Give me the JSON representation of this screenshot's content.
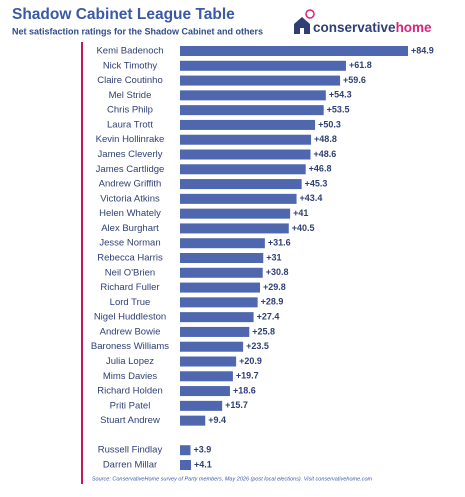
{
  "chart_data": {
    "type": "bar",
    "orientation": "horizontal",
    "title": "Shadow Cabinet League Table",
    "subtitle": "Net satisfaction ratings for the Shadow Cabinet and others",
    "logo": {
      "part1": "conservative",
      "part2": "home"
    },
    "source": "Source: ConservativeHome survey of Party members, May 2026 (post local elections). Visit conservativehome.com",
    "color": "#4e67ae",
    "categories": [
      "Kemi Badenoch",
      "Nick Timothy",
      "Claire Coutinho",
      "Mel Stride",
      "Chris Philp",
      "Laura Trott",
      "Kevin Hollinrake",
      "James Cleverly",
      "James Cartlidge",
      "Andrew Griffith",
      "Victoria Atkins",
      "Helen Whately",
      "Alex Burghart",
      "Jesse Norman",
      "Rebecca Harris",
      "Neil O'Brien",
      "Richard Fuller",
      "Lord True",
      "Nigel Huddleston",
      "Andrew Bowie",
      "Baroness Williams",
      "Julia Lopez",
      "Mims Davies",
      "Richard Holden",
      "Priti Patel",
      "Stuart Andrew",
      null,
      "Russell Findlay",
      "Darren Millar"
    ],
    "values": [
      84.9,
      61.8,
      59.6,
      54.3,
      53.5,
      50.3,
      48.8,
      48.6,
      46.8,
      45.3,
      43.4,
      41,
      40.5,
      31.6,
      31,
      30.8,
      29.8,
      28.9,
      27.4,
      25.8,
      23.5,
      20.9,
      19.7,
      18.6,
      15.7,
      9.4,
      null,
      3.9,
      4.1
    ],
    "value_labels": [
      "+84.9",
      "+61.8",
      "+59.6",
      "+54.3",
      "+53.5",
      "+50.3",
      "+48.8",
      "+48.6",
      "+46.8",
      "+45.3",
      "+43.4",
      "+41",
      "+40.5",
      "+31.6",
      "+31",
      "+30.8",
      "+29.8",
      "+28.9",
      "+27.4",
      "+25.8",
      "+23.5",
      "+20.9",
      "+19.7",
      "+18.6",
      "+15.7",
      "+9.4",
      null,
      "+3.9",
      "+4.1"
    ]
  }
}
